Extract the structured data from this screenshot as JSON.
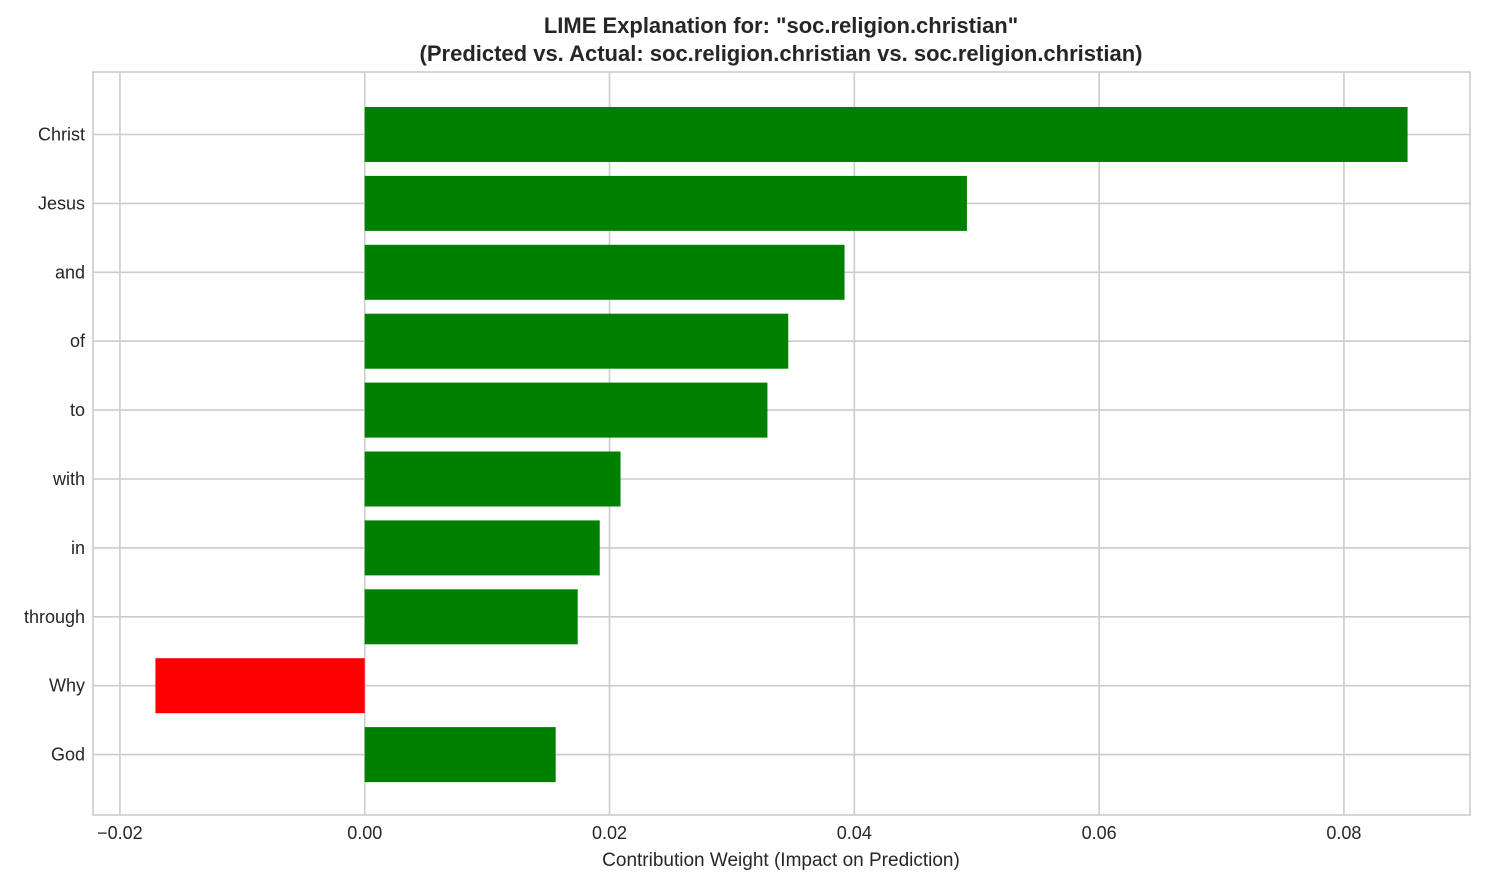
{
  "chart_data": {
    "type": "bar",
    "orientation": "horizontal",
    "title_line1": "LIME Explanation for: \"soc.religion.christian\"",
    "title_line2": "(Predicted vs. Actual: soc.religion.christian vs. soc.religion.christian)",
    "xlabel": "Contribution Weight (Impact on Prediction)",
    "ylabel": "",
    "categories": [
      "Christ",
      "Jesus",
      "and",
      "of",
      "to",
      "with",
      "in",
      "through",
      "Why",
      "God"
    ],
    "values": [
      0.0852,
      0.0492,
      0.0392,
      0.0346,
      0.0329,
      0.0209,
      0.0192,
      0.0174,
      -0.0171,
      0.0156
    ],
    "xlim": [
      -0.0222,
      0.0903
    ],
    "xticks": [
      -0.02,
      0.0,
      0.02,
      0.04,
      0.06,
      0.08
    ],
    "xtick_labels": [
      "−0.02",
      "0.00",
      "0.02",
      "0.04",
      "0.06",
      "0.08"
    ],
    "positive_color": "#008000",
    "negative_color": "#ff0000",
    "grid": true,
    "legend": "none"
  }
}
